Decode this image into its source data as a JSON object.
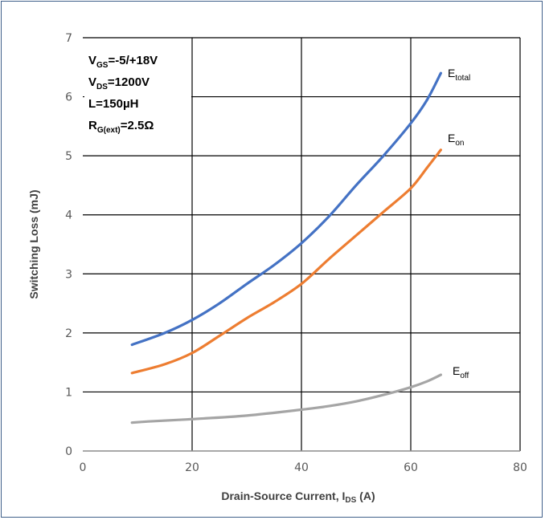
{
  "chart_data": {
    "type": "line",
    "xlabel": {
      "main": "Drain-Source Current, I",
      "sub": "DS",
      "tail": " (A)"
    },
    "ylabel": "Switching Loss (mJ)",
    "xlim": [
      0,
      80
    ],
    "ylim": [
      0,
      7
    ],
    "xticks": [
      0,
      20,
      40,
      60,
      80
    ],
    "yticks": [
      0,
      1,
      2,
      3,
      4,
      5,
      6,
      7
    ],
    "grid": true,
    "conditions": [
      {
        "main": "V",
        "sub": "GS",
        "tail": "=-5/+18V"
      },
      {
        "main": "V",
        "sub": "DS",
        "tail": "=1200V"
      },
      {
        "main": "L=150µH",
        "sub": "",
        "tail": ""
      },
      {
        "main": "R",
        "sub": "G(ext)",
        "tail": "=2.5Ω"
      }
    ],
    "series": [
      {
        "name": {
          "main": "E",
          "sub": "total"
        },
        "color": "#4472c4",
        "points": [
          [
            9,
            1.8
          ],
          [
            15,
            2.0
          ],
          [
            20,
            2.22
          ],
          [
            25,
            2.5
          ],
          [
            30,
            2.83
          ],
          [
            35,
            3.15
          ],
          [
            40,
            3.52
          ],
          [
            45,
            3.97
          ],
          [
            50,
            4.5
          ],
          [
            55,
            5.0
          ],
          [
            60,
            5.55
          ],
          [
            63,
            5.95
          ],
          [
            65.5,
            6.4
          ]
        ]
      },
      {
        "name": {
          "main": "E",
          "sub": "on"
        },
        "color": "#ed7d31",
        "points": [
          [
            9,
            1.32
          ],
          [
            15,
            1.47
          ],
          [
            20,
            1.66
          ],
          [
            25,
            1.95
          ],
          [
            30,
            2.25
          ],
          [
            35,
            2.52
          ],
          [
            40,
            2.83
          ],
          [
            45,
            3.25
          ],
          [
            50,
            3.65
          ],
          [
            55,
            4.05
          ],
          [
            60,
            4.45
          ],
          [
            63,
            4.8
          ],
          [
            65.5,
            5.1
          ]
        ]
      },
      {
        "name": {
          "main": "E",
          "sub": "off"
        },
        "color": "#a5a5a5",
        "points": [
          [
            9,
            0.48
          ],
          [
            12,
            0.5
          ],
          [
            20,
            0.54
          ],
          [
            30,
            0.6
          ],
          [
            40,
            0.7
          ],
          [
            45,
            0.76
          ],
          [
            50,
            0.84
          ],
          [
            55,
            0.95
          ],
          [
            60,
            1.08
          ],
          [
            63,
            1.18
          ],
          [
            65.5,
            1.29
          ]
        ]
      }
    ]
  }
}
